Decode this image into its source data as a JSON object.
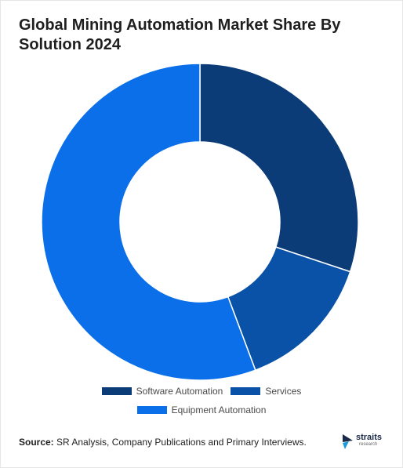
{
  "chart_data": {
    "type": "donut",
    "title": "Global Mining Automation Market Share By Solution 2024",
    "series": [
      {
        "name": "Software Automation",
        "value": 30.1,
        "color": "#0c3c78"
      },
      {
        "name": "Services",
        "value": 14.2,
        "color": "#0a52a8"
      },
      {
        "name": "Equipment Automation",
        "value": 55.7,
        "color": "#0a6fe8"
      }
    ],
    "legend_position": "bottom"
  },
  "source": {
    "label": "Source:",
    "text": " SR Analysis, Company Publications and Primary Interviews."
  },
  "logo": {
    "word": "straits",
    "sub": "research"
  }
}
